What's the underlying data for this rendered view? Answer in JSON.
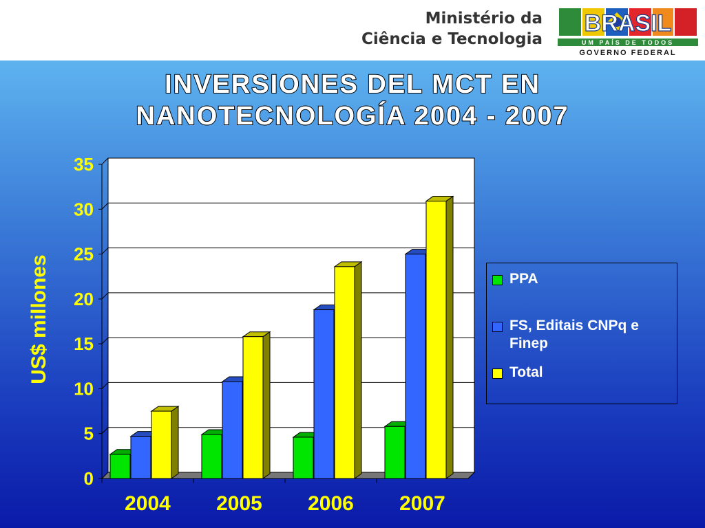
{
  "header": {
    "ministry_line1": "Ministério da",
    "ministry_line2": "Ciência e Tecnologia",
    "logo_word": "BRASIL",
    "logo_tagline": "UM PAÍS DE TODOS",
    "logo_subtitle": "GOVERNO FEDERAL"
  },
  "slide": {
    "title_line1": "INVERSIONES DEL MCT EN",
    "title_line2": "NANOTECNOLOGÍA  2004 - 2007"
  },
  "chart_data": {
    "type": "bar",
    "three_d": true,
    "categories": [
      "2004",
      "2005",
      "2006",
      "2007"
    ],
    "series": [
      {
        "name": "PPA",
        "color": "#00e600",
        "values": [
          2.7,
          4.9,
          4.6,
          5.8
        ]
      },
      {
        "name": "FS, Editais CNPq e Finep",
        "color": "#3366ff",
        "values": [
          4.7,
          10.8,
          18.8,
          25.0
        ]
      },
      {
        "name": "Total",
        "color": "#ffff00",
        "values": [
          7.5,
          15.8,
          23.6,
          30.9
        ]
      }
    ],
    "ylabel": "US$ millones",
    "ylim": [
      0,
      35
    ],
    "yticks": [
      "0",
      "5",
      "10",
      "15",
      "20",
      "25",
      "30",
      "35"
    ],
    "grid": true,
    "legend_position": "right",
    "axis_text_color": "#ffff00",
    "plot_background": "#ffffff"
  }
}
